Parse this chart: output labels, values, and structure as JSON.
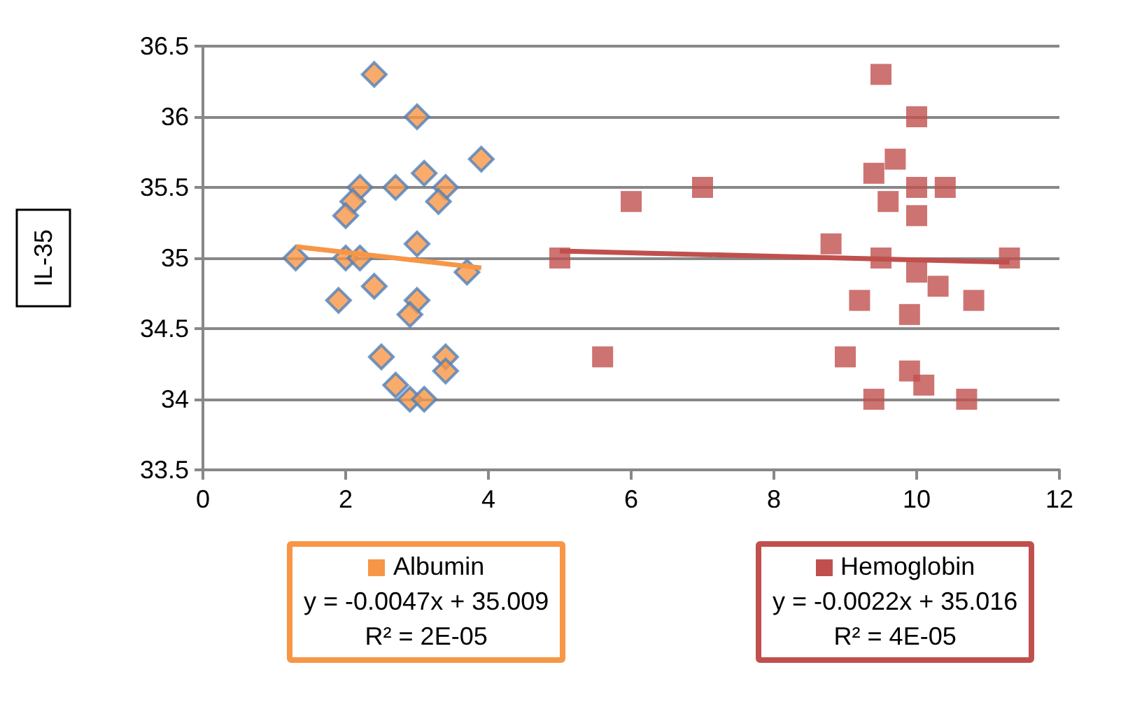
{
  "chart_data": {
    "type": "scatter",
    "ylabel": "IL-35",
    "xlim": [
      0,
      12
    ],
    "xticks": [
      0,
      2,
      4,
      6,
      8,
      10,
      12
    ],
    "ylim": [
      33.5,
      36.5
    ],
    "yticks": [
      33.5,
      34,
      34.5,
      35,
      35.5,
      36,
      36.5
    ],
    "grid": "y",
    "legend": "bottom",
    "series": [
      {
        "name": "Albumin",
        "color": "#f79646",
        "marker": "diamond",
        "x": [
          2.4,
          3.0,
          3.9,
          3.1,
          2.2,
          2.7,
          3.4,
          2.1,
          3.3,
          2.0,
          3.0,
          1.3,
          2.0,
          2.2,
          3.7,
          2.4,
          1.9,
          3.0,
          2.9,
          2.5,
          3.4,
          3.4,
          2.7,
          2.9,
          3.1
        ],
        "values": [
          36.3,
          36.0,
          35.7,
          35.6,
          35.5,
          35.5,
          35.5,
          35.4,
          35.4,
          35.3,
          35.1,
          35.0,
          35.0,
          35.0,
          34.9,
          34.8,
          34.7,
          34.7,
          34.6,
          34.3,
          34.3,
          34.2,
          34.1,
          34.0,
          34.0
        ]
      },
      {
        "name": "Hemoglobin",
        "color": "#c0504d",
        "marker": "square",
        "x": [
          5.0,
          5.6,
          6.0,
          7.0,
          8.8,
          9.0,
          9.2,
          9.5,
          9.4,
          9.7,
          9.6,
          9.5,
          9.4,
          10.0,
          10.0,
          10.0,
          10.0,
          9.9,
          9.9,
          10.1,
          10.4,
          10.3,
          10.8,
          10.7,
          11.3
        ],
        "values": [
          35.0,
          34.3,
          35.4,
          35.5,
          35.1,
          34.3,
          34.7,
          36.3,
          35.6,
          35.7,
          35.4,
          35.0,
          34.0,
          36.0,
          35.5,
          35.3,
          34.9,
          34.6,
          34.2,
          34.1,
          35.5,
          34.8,
          34.7,
          34.0,
          35.0
        ]
      },
      {
        "type": "line",
        "color": "#f79646",
        "marker": "none",
        "x": [
          1.3,
          3.9
        ],
        "values": [
          35.08,
          34.93
        ]
      },
      {
        "type": "line",
        "color": "#c0504d",
        "marker": "none",
        "x": [
          5.0,
          11.3
        ],
        "values": [
          35.05,
          34.97
        ]
      }
    ],
    "annotations": [
      "y = -0.0047x + 35.009",
      "R² = 2E-05",
      "y = -0.0022x + 35.016",
      "R² = 4E-05"
    ]
  }
}
